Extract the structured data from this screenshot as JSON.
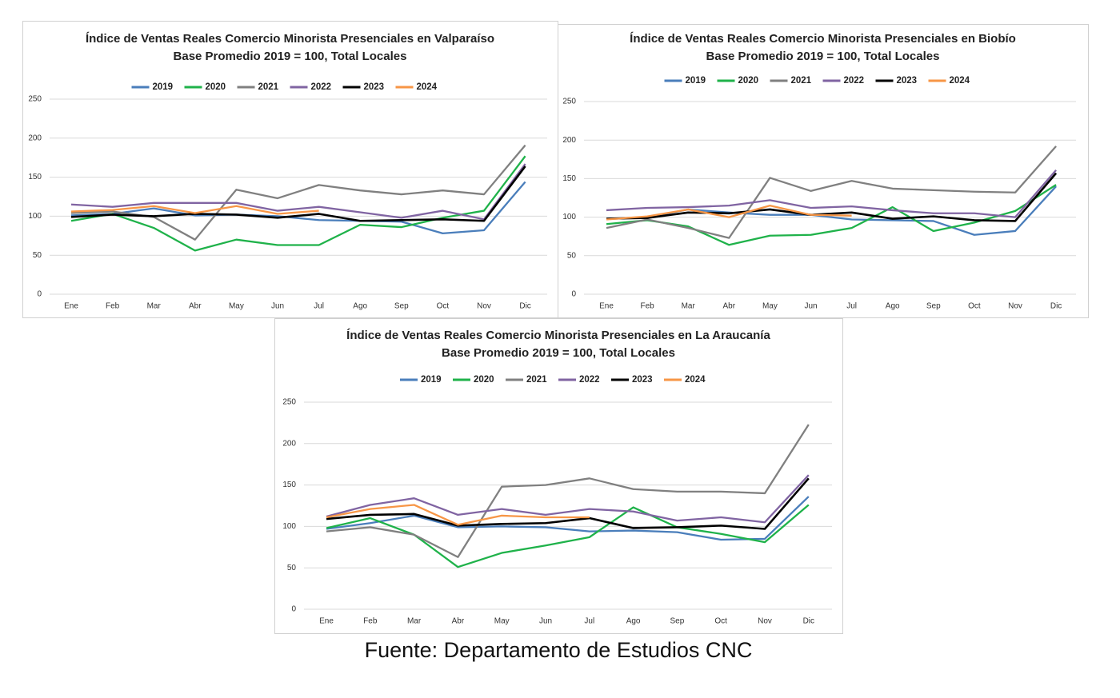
{
  "chart_data": [
    {
      "type": "line",
      "title": "Índice de Ventas Reales Comercio Minorista Presenciales en Valparaíso",
      "subtitle": "Base Promedio 2019 = 100, Total Locales",
      "categories": [
        "Ene",
        "Feb",
        "Mar",
        "Abr",
        "May",
        "Jun",
        "Jul",
        "Ago",
        "Sep",
        "Oct",
        "Nov",
        "Dic"
      ],
      "ylim": [
        0,
        250
      ],
      "yticks": [
        0,
        50,
        100,
        150,
        200,
        250
      ],
      "grid": true,
      "legend": "top",
      "series": [
        {
          "name": "2019",
          "color": "#4a7ebb",
          "values": [
            101,
            103,
            110,
            101,
            102,
            100,
            95,
            94,
            93,
            78,
            82,
            144
          ]
        },
        {
          "name": "2020",
          "color": "#1fb24a",
          "values": [
            94,
            103,
            85,
            56,
            70,
            63,
            63,
            89,
            86,
            98,
            107,
            177
          ]
        },
        {
          "name": "2021",
          "color": "#808080",
          "values": [
            104,
            106,
            99,
            70,
            134,
            123,
            140,
            133,
            128,
            133,
            128,
            191
          ]
        },
        {
          "name": "2022",
          "color": "#8064a2",
          "values": [
            115,
            112,
            117,
            117,
            117,
            107,
            112,
            105,
            98,
            107,
            96,
            167
          ]
        },
        {
          "name": "2023",
          "color": "#000000",
          "values": [
            99,
            102,
            100,
            103,
            102,
            98,
            103,
            94,
            95,
            96,
            94,
            164
          ]
        },
        {
          "name": "2024",
          "color": "#f79646",
          "values": [
            106,
            108,
            113,
            104,
            113,
            103,
            107,
            null,
            null,
            null,
            null,
            null
          ]
        }
      ]
    },
    {
      "type": "line",
      "title": "Índice de Ventas Reales Comercio Minorista Presenciales en Biobío",
      "subtitle": "Base Promedio 2019 = 100, Total Locales",
      "categories": [
        "Ene",
        "Feb",
        "Mar",
        "Abr",
        "May",
        "Jun",
        "Jul",
        "Ago",
        "Sep",
        "Oct",
        "Nov",
        "Dic"
      ],
      "ylim": [
        0,
        250
      ],
      "yticks": [
        0,
        50,
        100,
        150,
        200,
        250
      ],
      "grid": true,
      "legend": "top",
      "series": [
        {
          "name": "2019",
          "color": "#4a7ebb",
          "values": [
            98,
            100,
            110,
            106,
            103,
            103,
            97,
            96,
            95,
            77,
            82,
            140
          ]
        },
        {
          "name": "2020",
          "color": "#1fb24a",
          "values": [
            91,
            96,
            88,
            64,
            76,
            77,
            86,
            113,
            82,
            93,
            108,
            142
          ]
        },
        {
          "name": "2021",
          "color": "#808080",
          "values": [
            86,
            97,
            86,
            73,
            151,
            134,
            147,
            137,
            135,
            133,
            132,
            192
          ]
        },
        {
          "name": "2022",
          "color": "#8064a2",
          "values": [
            109,
            112,
            113,
            115,
            122,
            112,
            114,
            109,
            105,
            105,
            100,
            161
          ]
        },
        {
          "name": "2023",
          "color": "#000000",
          "values": [
            98,
            99,
            106,
            105,
            110,
            103,
            106,
            98,
            101,
            96,
            95,
            157
          ]
        },
        {
          "name": "2024",
          "color": "#f79646",
          "values": [
            97,
            101,
            110,
            100,
            115,
            103,
            102,
            null,
            null,
            null,
            null,
            null
          ]
        }
      ]
    },
    {
      "type": "line",
      "title": "Índice de Ventas Reales Comercio Minorista Presenciales en La Araucanía",
      "subtitle": "Base Promedio 2019 = 100, Total Locales",
      "categories": [
        "Ene",
        "Feb",
        "Mar",
        "Abr",
        "May",
        "Jun",
        "Jul",
        "Ago",
        "Sep",
        "Oct",
        "Nov",
        "Dic"
      ],
      "ylim": [
        0,
        250
      ],
      "yticks": [
        0,
        50,
        100,
        150,
        200,
        250
      ],
      "grid": true,
      "legend": "top",
      "series": [
        {
          "name": "2019",
          "color": "#4a7ebb",
          "values": [
            97,
            104,
            113,
            99,
            100,
            99,
            94,
            95,
            93,
            84,
            85,
            136
          ]
        },
        {
          "name": "2020",
          "color": "#1fb24a",
          "values": [
            98,
            110,
            90,
            51,
            68,
            77,
            87,
            123,
            99,
            91,
            81,
            126
          ]
        },
        {
          "name": "2021",
          "color": "#808080",
          "values": [
            94,
            99,
            90,
            63,
            148,
            150,
            158,
            145,
            142,
            142,
            140,
            223
          ]
        },
        {
          "name": "2022",
          "color": "#8064a2",
          "values": [
            112,
            126,
            134,
            114,
            121,
            114,
            121,
            118,
            107,
            111,
            105,
            162
          ]
        },
        {
          "name": "2023",
          "color": "#000000",
          "values": [
            109,
            114,
            115,
            101,
            103,
            104,
            110,
            98,
            99,
            101,
            97,
            158
          ]
        },
        {
          "name": "2024",
          "color": "#f79646",
          "values": [
            111,
            121,
            126,
            102,
            113,
            111,
            111,
            null,
            null,
            null,
            null,
            null
          ]
        }
      ]
    }
  ],
  "source": "Fuente: Departamento de Estudios CNC"
}
